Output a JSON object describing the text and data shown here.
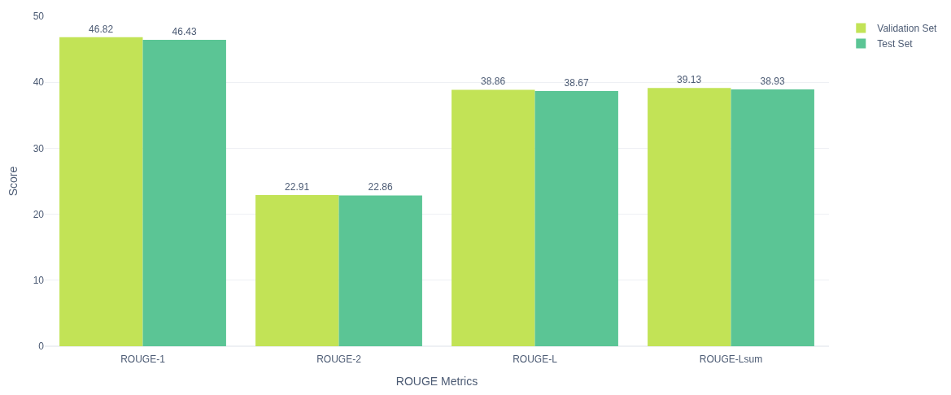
{
  "chart_data": {
    "type": "bar",
    "xlabel": "ROUGE Metrics",
    "ylabel": "Score",
    "categories": [
      "ROUGE-1",
      "ROUGE-2",
      "ROUGE-L",
      "ROUGE-Lsum"
    ],
    "series": [
      {
        "name": "Validation Set",
        "color": "#c2e356",
        "values": [
          46.82,
          22.91,
          38.86,
          39.13
        ]
      },
      {
        "name": "Test Set",
        "color": "#5bc595",
        "values": [
          46.43,
          22.86,
          38.67,
          38.93
        ]
      }
    ],
    "ylim": [
      0,
      50
    ],
    "yticks": [
      0,
      10,
      20,
      30,
      40,
      50
    ],
    "grid": "y",
    "legend": "top right",
    "data_labels": true
  }
}
